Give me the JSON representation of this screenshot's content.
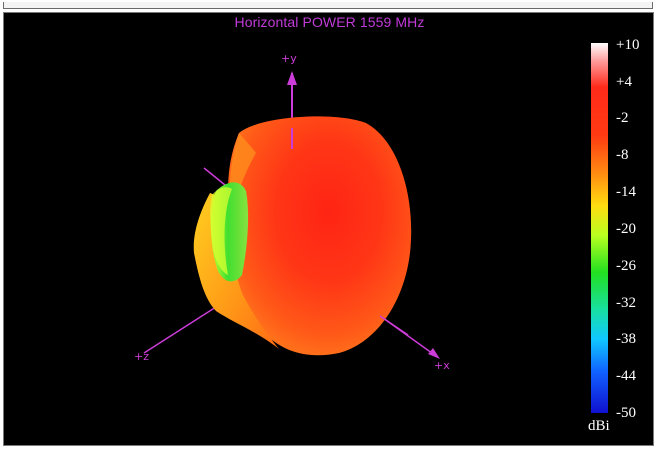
{
  "plot": {
    "title": "Horizontal POWER 1559  MHz",
    "axes": {
      "y": "+y",
      "z": "+z",
      "x": "+x"
    }
  },
  "colorbar": {
    "ticks": [
      "+10",
      "+4",
      "-2",
      "-8",
      "-14",
      "-20",
      "-26",
      "-32",
      "-38",
      "-44",
      "-50"
    ],
    "unit": "dBi"
  },
  "colors": {
    "background": "#000000",
    "axis": "#cc3cd8",
    "pattern_main": "#ff3a12"
  }
}
